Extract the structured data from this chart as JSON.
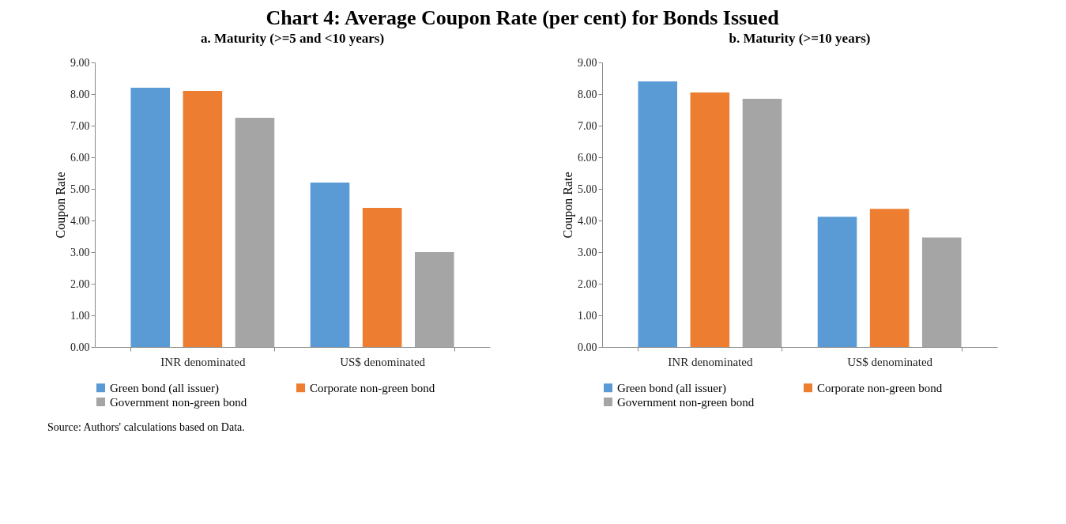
{
  "chart_data": [
    {
      "type": "bar",
      "title": "Chart 4: Average Coupon Rate (per cent) for Bonds Issued",
      "subtitle": "a. Maturity (>=5 and <10 years)",
      "ylabel": "Coupon Rate",
      "categories": [
        "INR denominated",
        "US$ denominated"
      ],
      "series": [
        {
          "name": "Green bond (all issuer)",
          "color": "#5b9bd5",
          "values": [
            8.2,
            5.2
          ]
        },
        {
          "name": "Corporate non-green bond",
          "color": "#ed7d31",
          "values": [
            8.1,
            4.4
          ]
        },
        {
          "name": "Government non-green bond",
          "color": "#a5a5a5",
          "values": [
            7.25,
            3.0
          ]
        }
      ],
      "ylim": [
        0,
        9
      ],
      "yticks": [
        {
          "value": 0,
          "label": "0.00"
        },
        {
          "value": 1,
          "label": "1.00"
        },
        {
          "value": 2,
          "label": "2.00"
        },
        {
          "value": 3,
          "label": "3.00"
        },
        {
          "value": 4,
          "label": "4.00"
        },
        {
          "value": 5,
          "label": "5.00"
        },
        {
          "value": 6,
          "label": "6.00"
        },
        {
          "value": 7,
          "label": "7.00"
        },
        {
          "value": 8,
          "label": "8.00"
        },
        {
          "value": 9,
          "label": "9.00"
        }
      ],
      "grid": false,
      "legend": "bottom",
      "annotations": [
        "Source: Authors' calculations based on Data."
      ]
    },
    {
      "type": "bar",
      "subtitle": "b. Maturity (>=10 years)",
      "ylabel": "Coupon Rate",
      "categories": [
        "INR denominated",
        "US$ denominated"
      ],
      "series": [
        {
          "name": "Green bond (all issuer)",
          "color": "#5b9bd5",
          "values": [
            8.4,
            4.12
          ]
        },
        {
          "name": "Corporate non-green bond",
          "color": "#ed7d31",
          "values": [
            8.05,
            4.37
          ]
        },
        {
          "name": "Government non-green bond",
          "color": "#a5a5a5",
          "values": [
            7.85,
            3.46
          ]
        }
      ],
      "ylim": [
        0,
        9
      ],
      "yticks": [
        {
          "value": 0,
          "label": "0.00"
        },
        {
          "value": 1,
          "label": "1.00"
        },
        {
          "value": 2,
          "label": "2.00"
        },
        {
          "value": 3,
          "label": "3.00"
        },
        {
          "value": 4,
          "label": "4.00"
        },
        {
          "value": 5,
          "label": "5.00"
        },
        {
          "value": 6,
          "label": "6.00"
        },
        {
          "value": 7,
          "label": "7.00"
        },
        {
          "value": 8,
          "label": "8.00"
        },
        {
          "value": 9,
          "label": "9.00"
        }
      ],
      "grid": false,
      "legend": "bottom"
    }
  ]
}
